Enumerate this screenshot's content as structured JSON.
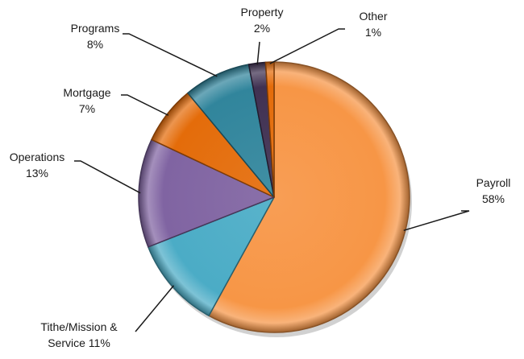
{
  "chart_data": {
    "type": "pie",
    "title": "",
    "start_angle_deg": 0,
    "direction": "clockwise",
    "slices": [
      {
        "name": "Payroll",
        "value": 58,
        "label_line1": "Payroll",
        "label_line2": "58%",
        "color": "#F79646"
      },
      {
        "name": "Tithe/Mission & Service",
        "value": 11,
        "label_line1": "Tithe/Mission &",
        "label_line2": "Service 11%",
        "color": "#4BACC6"
      },
      {
        "name": "Operations",
        "value": 13,
        "label_line1": "Operations",
        "label_line2": "13%",
        "color": "#8064A2"
      },
      {
        "name": "Mortgage",
        "value": 7,
        "label_line1": "Mortgage",
        "label_line2": "7%",
        "color": "#E46C0A"
      },
      {
        "name": "Programs",
        "value": 8,
        "label_line1": "Programs",
        "label_line2": "8%",
        "color": "#31859C"
      },
      {
        "name": "Property",
        "value": 2,
        "label_line1": "Property",
        "label_line2": "2%",
        "color": "#403152"
      },
      {
        "name": "Other",
        "value": 1,
        "label_line1": "Other",
        "label_line2": "1%",
        "color": "#E46C0A"
      }
    ]
  }
}
